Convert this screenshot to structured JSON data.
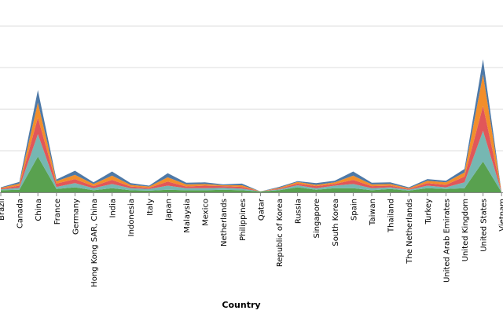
{
  "chart_data": {
    "type": "area",
    "stacked": true,
    "xlabel": "Country",
    "ylabel": "",
    "ylim": [
      0,
      4.4
    ],
    "grid": true,
    "legend": "none",
    "categories": [
      "Brazil",
      "Canada",
      "China",
      "France",
      "Germany",
      "Hong Kong SAR, China",
      "India",
      "Indonesia",
      "Italy",
      "Japan",
      "Malaysia",
      "Mexico",
      "Netherlands",
      "Philippines",
      "Qatar",
      "Republic of Korea",
      "Russia",
      "Singapore",
      "South Korea",
      "Spain",
      "Taiwan",
      "Thailand",
      "The Netherlands",
      "Turkey",
      "United Arab Emirates",
      "United Kingdom",
      "United States",
      "Vietnam"
    ],
    "series": [
      {
        "color": "#59a14f",
        "values": [
          0.05,
          0.06,
          0.86,
          0.08,
          0.12,
          0.05,
          0.1,
          0.05,
          0.04,
          0.06,
          0.05,
          0.05,
          0.06,
          0.05,
          0.02,
          0.05,
          0.12,
          0.06,
          0.1,
          0.1,
          0.05,
          0.08,
          0.04,
          0.1,
          0.08,
          0.1,
          0.74,
          0.0
        ]
      },
      {
        "color": "#76b7b2",
        "values": [
          0.02,
          0.05,
          0.54,
          0.05,
          0.1,
          0.05,
          0.1,
          0.05,
          0.04,
          0.1,
          0.05,
          0.05,
          0.05,
          0.04,
          0.0,
          0.02,
          0.05,
          0.04,
          0.06,
          0.1,
          0.05,
          0.04,
          0.02,
          0.06,
          0.04,
          0.14,
          0.74,
          0.0
        ]
      },
      {
        "color": "#e15759",
        "values": [
          0.02,
          0.05,
          0.4,
          0.08,
          0.1,
          0.05,
          0.1,
          0.04,
          0.03,
          0.1,
          0.04,
          0.06,
          0.04,
          0.04,
          0.0,
          0.02,
          0.04,
          0.05,
          0.04,
          0.1,
          0.05,
          0.04,
          0.02,
          0.06,
          0.06,
          0.14,
          0.6,
          0.0
        ]
      },
      {
        "color": "#f28e2b",
        "values": [
          0.02,
          0.05,
          0.36,
          0.06,
          0.1,
          0.05,
          0.1,
          0.04,
          0.03,
          0.1,
          0.05,
          0.04,
          0.02,
          0.04,
          0.0,
          0.02,
          0.04,
          0.03,
          0.04,
          0.1,
          0.04,
          0.04,
          0.02,
          0.06,
          0.06,
          0.1,
          0.76,
          0.0
        ]
      },
      {
        "color": "#4e79a7",
        "values": [
          0.01,
          0.04,
          0.3,
          0.04,
          0.1,
          0.04,
          0.1,
          0.04,
          0.02,
          0.1,
          0.04,
          0.04,
          0.02,
          0.04,
          0.0,
          0.02,
          0.02,
          0.04,
          0.04,
          0.1,
          0.04,
          0.04,
          0.02,
          0.04,
          0.04,
          0.08,
          0.36,
          0.0
        ]
      }
    ]
  }
}
